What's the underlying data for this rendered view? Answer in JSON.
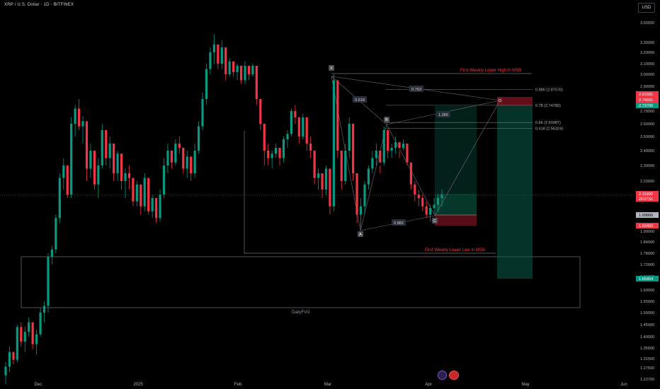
{
  "header": {
    "symbol": "XRP / U.S. Dollar · 1D · BITFINEX",
    "unit": "USD"
  },
  "chart_data": {
    "type": "candlestick",
    "y_ticks": [
      3.5,
      3.3,
      3.2,
      3.1,
      3.0,
      2.9,
      2.8,
      2.7,
      2.6,
      2.5,
      2.4,
      2.3,
      2.2,
      2.1,
      1.9,
      1.84,
      1.78,
      1.72,
      1.66,
      1.6,
      1.55,
      1.5,
      1.45,
      1.4,
      1.355,
      1.315,
      1.275,
      1.237
    ],
    "x_labels": [
      "Dec",
      "2025",
      "Feb",
      "Mar",
      "Apr",
      "May",
      "Jun"
    ],
    "price_tags": [
      {
        "value": "2.81691",
        "color": "#f23645"
      },
      {
        "value": "2.74591",
        "color": "#f23645"
      },
      {
        "value": "2.73706",
        "color": "#089981"
      },
      {
        "value": "2.11900",
        "sub": "20:07:51",
        "color": "#f23645"
      },
      {
        "value": "1.99866",
        "color": "#b2b5be"
      },
      {
        "value": "1.93400",
        "color": "#f23645"
      },
      {
        "value": "1.65454",
        "color": "#089981"
      }
    ],
    "fib_labels": [
      "0.886 (2.87570)",
      "0.78 (2.74780)",
      "0.66 (2.60987)",
      "0.618 (2.56324)"
    ],
    "ratio_labels": [
      "0.763",
      "0.618",
      "1.266",
      "0.882"
    ],
    "points": [
      "X",
      "A",
      "B",
      "C",
      "D"
    ],
    "annotations": [
      "First Weekly Lower High In MSB",
      "First Weekly Lower Low In MSB",
      "DailyFVG"
    ]
  }
}
